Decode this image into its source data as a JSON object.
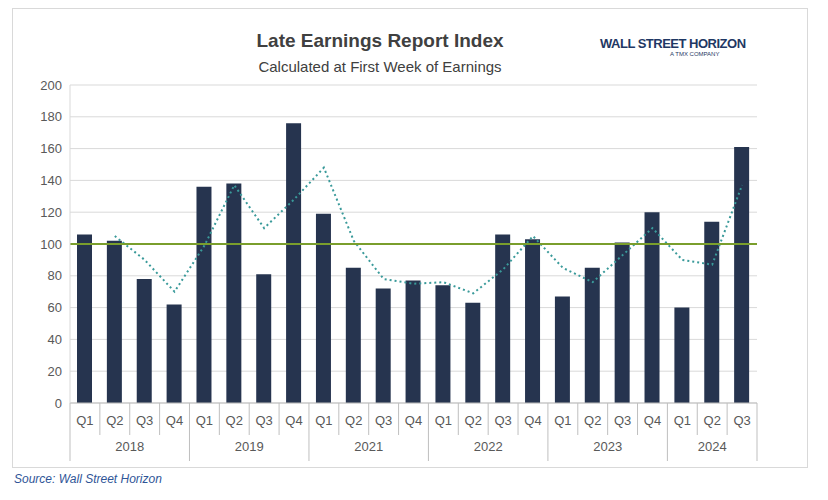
{
  "chart_data": {
    "type": "bar",
    "title": "Late Earnings Report Index",
    "subtitle": "Calculated at First Week of Earnings",
    "source": "Source: Wall Street Horizon",
    "logo": "WALL STREET HORIZON",
    "logo_subtitle": "A TMX COMPANY",
    "categories": [
      "Q1",
      "Q2",
      "Q3",
      "Q4",
      "Q1",
      "Q2",
      "Q3",
      "Q4",
      "Q1",
      "Q2",
      "Q3",
      "Q4",
      "Q1",
      "Q2",
      "Q3",
      "Q4",
      "Q1",
      "Q2",
      "Q3",
      "Q4",
      "Q1",
      "Q2",
      "Q3"
    ],
    "group_labels": [
      "2018",
      "2018",
      "2018",
      "2018",
      "2019",
      "2019",
      "2019",
      "2019",
      "2021",
      "2021",
      "2021",
      "2021",
      "2022",
      "2022",
      "2022",
      "2022",
      "2023",
      "2023",
      "2023",
      "2023",
      "2024",
      "2024",
      "2024"
    ],
    "series": [
      {
        "type": "bar",
        "color": "#26344f",
        "values": [
          106,
          102,
          78,
          62,
          136,
          138,
          81,
          176,
          119,
          85,
          72,
          77,
          74,
          63,
          106,
          103,
          67,
          85,
          101,
          120,
          60,
          114,
          161
        ]
      },
      {
        "type": "line",
        "color": "#3a9a9a",
        "line_style": "dotted",
        "values": [
          null,
          105,
          90,
          70,
          99,
          137,
          110,
          128,
          148,
          102,
          78,
          75,
          76,
          69,
          84,
          105,
          85,
          76,
          93,
          110,
          90,
          87,
          137
        ]
      }
    ],
    "reference_line": {
      "value": 100,
      "color": "#7a9e2c"
    },
    "ylim": [
      0,
      200
    ],
    "yticks": [
      0,
      20,
      40,
      60,
      80,
      100,
      120,
      140,
      160,
      180,
      200
    ],
    "grid": true
  }
}
